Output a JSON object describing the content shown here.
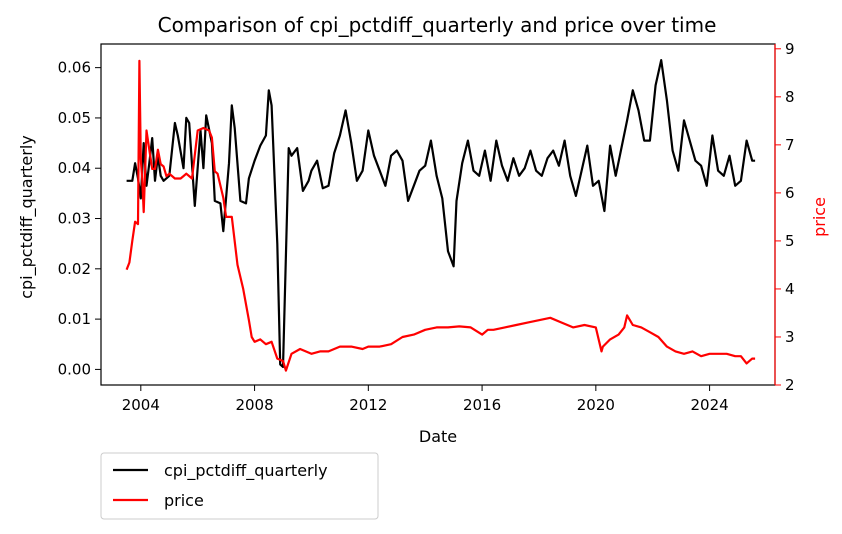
{
  "chart_data": {
    "type": "line",
    "title": "Comparison of cpi_pctdiff_quarterly and price over time",
    "xlabel": "Date",
    "ylabel_left": "cpi_pctdiff_quarterly",
    "ylabel_right": "price",
    "x_ticks": [
      "2004",
      "2008",
      "2012",
      "2016",
      "2020",
      "2024"
    ],
    "y_left_ticks": [
      "0.00",
      "0.01",
      "0.02",
      "0.03",
      "0.04",
      "0.05",
      "0.06"
    ],
    "y_right_ticks": [
      "2",
      "3",
      "4",
      "5",
      "6",
      "7",
      "8",
      "9"
    ],
    "xlim": [
      2002.6,
      2026.3
    ],
    "ylim_left": [
      -0.0031,
      0.0647
    ],
    "ylim_right": [
      2.0,
      9.1
    ],
    "grid": false,
    "legend_position": "below-left",
    "colors": {
      "cpi_pctdiff_quarterly": "#000000",
      "price": "#ff0000",
      "right_axis": "#ff0000"
    },
    "series": [
      {
        "name": "cpi_pctdiff_quarterly",
        "axis": "left",
        "x": [
          2003.5,
          2003.7,
          2003.8,
          2003.9,
          2004.0,
          2004.1,
          2004.2,
          2004.3,
          2004.4,
          2004.5,
          2004.6,
          2004.7,
          2004.8,
          2005.0,
          2005.2,
          2005.3,
          2005.5,
          2005.6,
          2005.7,
          2005.9,
          2006.1,
          2006.2,
          2006.3,
          2006.5,
          2006.6,
          2006.8,
          2006.9,
          2007.1,
          2007.2,
          2007.3,
          2007.5,
          2007.7,
          2007.8,
          2008.0,
          2008.2,
          2008.4,
          2008.5,
          2008.6,
          2008.8,
          2008.9,
          2009.0,
          2009.1,
          2009.2,
          2009.3,
          2009.5,
          2009.7,
          2009.9,
          2010.0,
          2010.2,
          2010.4,
          2010.6,
          2010.8,
          2011.0,
          2011.2,
          2011.4,
          2011.6,
          2011.8,
          2012.0,
          2012.2,
          2012.4,
          2012.6,
          2012.8,
          2013.0,
          2013.2,
          2013.4,
          2013.6,
          2013.8,
          2014.0,
          2014.2,
          2014.4,
          2014.6,
          2014.8,
          2015.0,
          2015.1,
          2015.3,
          2015.5,
          2015.7,
          2015.9,
          2016.1,
          2016.3,
          2016.5,
          2016.7,
          2016.9,
          2017.1,
          2017.3,
          2017.5,
          2017.7,
          2017.9,
          2018.1,
          2018.3,
          2018.5,
          2018.7,
          2018.9,
          2019.1,
          2019.3,
          2019.5,
          2019.7,
          2019.9,
          2020.1,
          2020.3,
          2020.5,
          2020.7,
          2020.9,
          2021.1,
          2021.3,
          2021.5,
          2021.7,
          2021.9,
          2022.1,
          2022.3,
          2022.5,
          2022.7,
          2022.9,
          2023.1,
          2023.3,
          2023.5,
          2023.7,
          2023.9,
          2024.1,
          2024.3,
          2024.5,
          2024.7,
          2024.9,
          2025.1,
          2025.3,
          2025.5,
          2025.6
        ],
        "values": [
          0.0375,
          0.0375,
          0.041,
          0.038,
          0.034,
          0.045,
          0.0365,
          0.041,
          0.046,
          0.0375,
          0.0425,
          0.0385,
          0.0375,
          0.0385,
          0.049,
          0.0465,
          0.04,
          0.05,
          0.049,
          0.0325,
          0.0475,
          0.04,
          0.0505,
          0.045,
          0.0335,
          0.033,
          0.0275,
          0.041,
          0.0525,
          0.048,
          0.0335,
          0.033,
          0.038,
          0.0415,
          0.0445,
          0.0465,
          0.0555,
          0.0525,
          0.025,
          0.001,
          0.0005,
          0.0225,
          0.044,
          0.0425,
          0.044,
          0.0355,
          0.0375,
          0.0395,
          0.0415,
          0.036,
          0.0365,
          0.043,
          0.0465,
          0.0515,
          0.045,
          0.0375,
          0.0395,
          0.0475,
          0.0425,
          0.0395,
          0.0365,
          0.0425,
          0.0435,
          0.0415,
          0.0335,
          0.0365,
          0.0395,
          0.0405,
          0.0455,
          0.0385,
          0.034,
          0.0235,
          0.0205,
          0.0335,
          0.041,
          0.0455,
          0.0395,
          0.0385,
          0.0435,
          0.0375,
          0.0455,
          0.0405,
          0.0375,
          0.042,
          0.0385,
          0.04,
          0.0435,
          0.0395,
          0.0385,
          0.042,
          0.0435,
          0.0405,
          0.0455,
          0.0385,
          0.0345,
          0.0395,
          0.0445,
          0.0365,
          0.0375,
          0.0315,
          0.0445,
          0.0385,
          0.044,
          0.0495,
          0.0555,
          0.0515,
          0.0455,
          0.0455,
          0.0565,
          0.0615,
          0.0535,
          0.0435,
          0.0395,
          0.0495,
          0.0455,
          0.0415,
          0.0405,
          0.0365,
          0.0465,
          0.0395,
          0.0385,
          0.0425,
          0.0365,
          0.0375,
          0.0455,
          0.0415,
          0.0415
        ]
      },
      {
        "name": "price",
        "axis": "right",
        "x": [
          2003.5,
          2003.6,
          2003.7,
          2003.8,
          2003.9,
          2003.95,
          2004.0,
          2004.05,
          2004.1,
          2004.2,
          2004.3,
          2004.4,
          2004.5,
          2004.6,
          2004.7,
          2004.8,
          2004.9,
          2005.0,
          2005.2,
          2005.4,
          2005.5,
          2005.6,
          2005.7,
          2005.8,
          2006.0,
          2006.2,
          2006.4,
          2006.5,
          2006.6,
          2006.7,
          2006.9,
          2007.0,
          2007.2,
          2007.4,
          2007.6,
          2007.8,
          2007.9,
          2008.0,
          2008.2,
          2008.4,
          2008.6,
          2008.8,
          2009.0,
          2009.1,
          2009.3,
          2009.6,
          2010.0,
          2010.3,
          2010.6,
          2011.0,
          2011.4,
          2011.8,
          2012.0,
          2012.4,
          2012.8,
          2013.2,
          2013.6,
          2014.0,
          2014.4,
          2014.8,
          2015.2,
          2015.6,
          2016.0,
          2016.2,
          2016.4,
          2016.8,
          2017.2,
          2017.6,
          2018.0,
          2018.4,
          2018.8,
          2019.2,
          2019.6,
          2020.0,
          2020.2,
          2020.25,
          2020.5,
          2020.8,
          2021.0,
          2021.1,
          2021.3,
          2021.6,
          2021.9,
          2022.2,
          2022.5,
          2022.8,
          2023.1,
          2023.4,
          2023.7,
          2024.0,
          2024.3,
          2024.6,
          2024.9,
          2025.1,
          2025.3,
          2025.5,
          2025.6
        ],
        "values": [
          4.4,
          4.55,
          5.0,
          5.4,
          5.35,
          8.75,
          6.7,
          6.3,
          5.6,
          7.3,
          6.9,
          6.5,
          6.5,
          6.9,
          6.6,
          6.55,
          6.35,
          6.4,
          6.3,
          6.3,
          6.35,
          6.4,
          6.35,
          6.3,
          7.3,
          7.35,
          7.3,
          7.15,
          6.45,
          6.4,
          5.9,
          5.5,
          5.5,
          4.5,
          4.0,
          3.35,
          3.0,
          2.9,
          2.95,
          2.85,
          2.9,
          2.55,
          2.5,
          2.3,
          2.65,
          2.75,
          2.65,
          2.7,
          2.7,
          2.8,
          2.8,
          2.75,
          2.8,
          2.8,
          2.85,
          3.0,
          3.05,
          3.15,
          3.2,
          3.2,
          3.22,
          3.2,
          3.05,
          3.15,
          3.15,
          3.2,
          3.25,
          3.3,
          3.35,
          3.4,
          3.3,
          3.2,
          3.25,
          3.2,
          2.7,
          2.8,
          2.95,
          3.05,
          3.2,
          3.45,
          3.25,
          3.2,
          3.1,
          3.0,
          2.8,
          2.7,
          2.65,
          2.7,
          2.6,
          2.65,
          2.65,
          2.65,
          2.6,
          2.6,
          2.45,
          2.55,
          2.55
        ]
      }
    ]
  }
}
